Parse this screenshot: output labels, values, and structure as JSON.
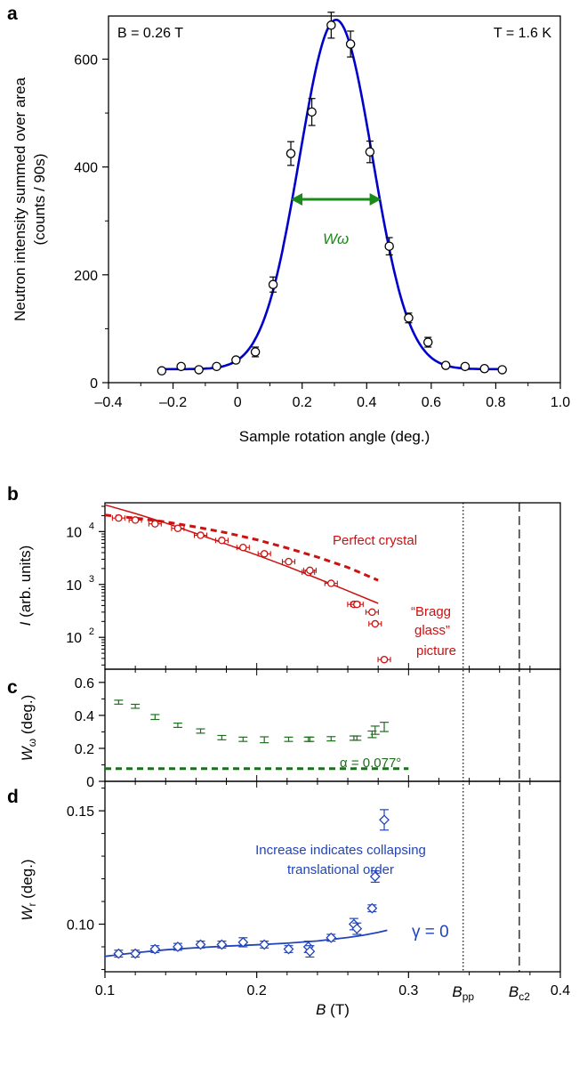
{
  "chart_data": [
    {
      "id": "a",
      "type": "scatter",
      "panel_label": "a",
      "xlabel": "Sample rotation angle (deg.)",
      "ylabel_line1": "Neutron intensity summed over area",
      "ylabel_line2": "(counts / 90s)",
      "xlim": [
        -0.4,
        1.0
      ],
      "ylim": [
        0,
        680
      ],
      "xticks": [
        -0.4,
        -0.2,
        0,
        0.2,
        0.4,
        0.6,
        0.8,
        1.0
      ],
      "xtick_labels": [
        "–0.4",
        "–0.2",
        "0",
        "0.2",
        "0.4",
        "0.6",
        "0.8",
        "1.0"
      ],
      "yticks": [
        0,
        200,
        400,
        600
      ],
      "ytick_labels": [
        "0",
        "200",
        "400",
        "600"
      ],
      "annotation_left": "B = 0.26 T",
      "annotation_right": "T = 1.6 K",
      "width_label": "Wω",
      "width_arrow": {
        "x0": 0.165,
        "x1": 0.445,
        "y": 340
      },
      "colors": {
        "points": "#000000",
        "fit": "#0000cc",
        "arrow": "#1a8a1a"
      },
      "series": [
        {
          "kind": "data",
          "x": [
            -0.235,
            -0.175,
            -0.12,
            -0.065,
            -0.005,
            0.055,
            0.11,
            0.165,
            0.23,
            0.29,
            0.35,
            0.41,
            0.47,
            0.53,
            0.59,
            0.645,
            0.705,
            0.765,
            0.82
          ],
          "y": [
            22,
            30,
            24,
            30,
            42,
            57,
            182,
            425,
            502,
            663,
            628,
            428,
            253,
            120,
            75,
            32,
            30,
            26,
            24
          ],
          "err": [
            4,
            4,
            4,
            5,
            7,
            9,
            14,
            22,
            25,
            24,
            24,
            20,
            16,
            9,
            9,
            4,
            4,
            4,
            4
          ]
        },
        {
          "kind": "gaussian_fit",
          "amplitude": 648,
          "center": 0.305,
          "sigma": 0.113,
          "baseline": 25,
          "x_range": [
            -0.235,
            0.82
          ]
        }
      ]
    },
    {
      "id": "b",
      "type": "scatter",
      "panel_label": "b",
      "ylabel_main": "I",
      "ylabel_rest": " (arb. units)",
      "yscale": "log",
      "xlim": [
        0.1,
        0.4
      ],
      "ylim": [
        25,
        35000
      ],
      "yticks": [
        100,
        1000,
        10000
      ],
      "ytick_base": "10",
      "ytick_exp": [
        "2",
        "3",
        "4"
      ],
      "annotation_crystal": "Perfect crystal",
      "annotation_bragg": [
        "“Bragg",
        "glass”",
        "picture"
      ],
      "colors": {
        "points": "#cc1111",
        "model": "#cc1111"
      },
      "series": [
        {
          "kind": "data",
          "x": [
            0.109,
            0.12,
            0.133,
            0.148,
            0.163,
            0.177,
            0.191,
            0.205,
            0.221,
            0.234,
            0.235,
            0.249,
            0.264,
            0.266,
            0.276,
            0.278,
            0.284
          ],
          "y": [
            18000,
            16500,
            14000,
            11500,
            8500,
            6800,
            5000,
            3800,
            2700,
            1700,
            1850,
            1050,
            420,
            420,
            300,
            180,
            38
          ]
        },
        {
          "kind": "perfect_crystal",
          "x": [
            0.1,
            0.12,
            0.14,
            0.16,
            0.18,
            0.2,
            0.22,
            0.24,
            0.26,
            0.28
          ],
          "y": [
            20500,
            18000,
            15200,
            12200,
            9500,
            7000,
            4900,
            3300,
            2100,
            1200
          ]
        },
        {
          "kind": "bragg_glass",
          "x": [
            0.1,
            0.12,
            0.14,
            0.16,
            0.18,
            0.2,
            0.22,
            0.24,
            0.26,
            0.28
          ],
          "y": [
            32000,
            22000,
            14500,
            9200,
            5800,
            3600,
            2200,
            1300,
            760,
            440
          ]
        }
      ]
    },
    {
      "id": "c",
      "type": "scatter",
      "panel_label": "c",
      "ylabel_main": "W",
      "ylabel_sub": "ω",
      "ylabel_rest": " (deg.)",
      "xlim": [
        0.1,
        0.4
      ],
      "ylim": [
        0,
        0.68
      ],
      "yticks": [
        0,
        0.2,
        0.4,
        0.6
      ],
      "ytick_labels": [
        "0",
        "0.2",
        "0.4",
        "0.6"
      ],
      "alpha_label": "α = 0.077°",
      "alpha_value": 0.077,
      "alpha_x_range": [
        0.1,
        0.3
      ],
      "colors": {
        "points": "#1e6e1e",
        "alpha": "#1e6e1e"
      },
      "series": [
        {
          "kind": "data",
          "x": [
            0.109,
            0.12,
            0.133,
            0.148,
            0.163,
            0.177,
            0.191,
            0.205,
            0.221,
            0.234,
            0.235,
            0.249,
            0.264,
            0.266,
            0.276,
            0.278,
            0.284
          ],
          "y": [
            0.48,
            0.455,
            0.39,
            0.34,
            0.305,
            0.265,
            0.255,
            0.252,
            0.255,
            0.255,
            0.255,
            0.258,
            0.262,
            0.262,
            0.285,
            0.31,
            0.33
          ],
          "err": [
            0.012,
            0.012,
            0.015,
            0.013,
            0.013,
            0.013,
            0.013,
            0.018,
            0.013,
            0.013,
            0.013,
            0.013,
            0.013,
            0.013,
            0.02,
            0.025,
            0.028
          ]
        }
      ]
    },
    {
      "id": "d",
      "type": "scatter",
      "panel_label": "d",
      "xlabel_main": "B",
      "xlabel_rest": " (T)",
      "ylabel_main": "W",
      "ylabel_sub": "r",
      "ylabel_rest": " (deg.)",
      "xlim": [
        0.1,
        0.4
      ],
      "ylim": [
        0.079,
        0.163
      ],
      "xticks": [
        0.1,
        0.2,
        0.3,
        0.4
      ],
      "xtick_labels": [
        "0.1",
        "0.2",
        "0.3",
        "0.4"
      ],
      "yticks": [
        0.1,
        0.15
      ],
      "ytick_labels": [
        "0.10",
        "0.15"
      ],
      "annotation_increase": [
        "Increase indicates collapsing",
        "translational order"
      ],
      "gamma_label": "γ = 0",
      "colors": {
        "points": "#2244bb",
        "model": "#2244bb",
        "annotation": "#2244bb"
      },
      "series": [
        {
          "kind": "data",
          "x": [
            0.109,
            0.12,
            0.133,
            0.148,
            0.163,
            0.177,
            0.191,
            0.205,
            0.221,
            0.234,
            0.235,
            0.249,
            0.264,
            0.266,
            0.276,
            0.278,
            0.284
          ],
          "y": [
            0.087,
            0.087,
            0.089,
            0.09,
            0.091,
            0.091,
            0.092,
            0.091,
            0.089,
            0.09,
            0.088,
            0.094,
            0.1,
            0.098,
            0.107,
            0.121,
            0.146
          ],
          "err": [
            0.0015,
            0.0015,
            0.0015,
            0.0015,
            0.0015,
            0.0015,
            0.002,
            0.0015,
            0.0015,
            0.0025,
            0.0025,
            0.0015,
            0.0025,
            0.0025,
            0.0015,
            0.0025,
            0.0045
          ]
        },
        {
          "kind": "gamma_zero_model",
          "x": [
            0.1,
            0.12,
            0.14,
            0.16,
            0.18,
            0.2,
            0.22,
            0.24,
            0.26,
            0.27,
            0.28,
            0.286
          ],
          "y": [
            0.0858,
            0.0874,
            0.0887,
            0.0896,
            0.0903,
            0.0909,
            0.0916,
            0.0926,
            0.0941,
            0.0951,
            0.0964,
            0.0973
          ]
        }
      ]
    }
  ],
  "field_markers": {
    "b_pp": {
      "value": 0.336,
      "label_main": "B",
      "label_sub": "pp",
      "style": "dotted"
    },
    "b_c2": {
      "value": 0.373,
      "label_main": "B",
      "label_sub": "c2",
      "style": "dashed"
    }
  }
}
